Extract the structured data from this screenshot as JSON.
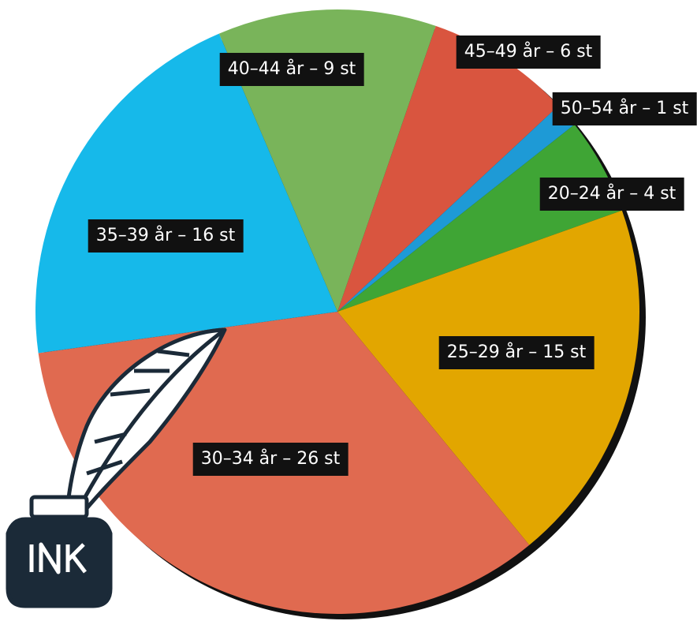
{
  "chart_data": {
    "type": "pie",
    "values": [
      6,
      1,
      4,
      15,
      26,
      16,
      9
    ],
    "value_labels": [
      "45–49 år – 6 st",
      "50–54 år – 1 st",
      "20–24 år – 4 st",
      "25–29 år – 15 st",
      "30–34 år – 26 st",
      "35–39 år – 16 st",
      "40–44 år – 9 st"
    ],
    "colors": [
      "#d9553f",
      "#1e9ad6",
      "#3fa535",
      "#e2a600",
      "#e06a50",
      "#16b9ea",
      "#79b45a"
    ]
  }
}
